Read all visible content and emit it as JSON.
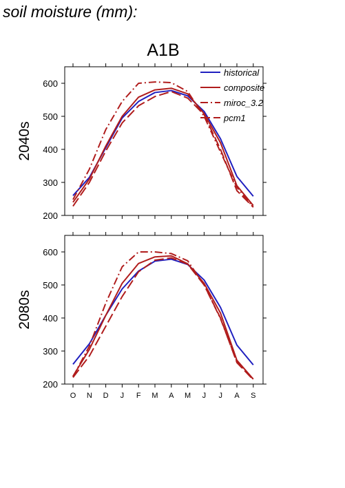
{
  "figure": {
    "title": "soil moisture (mm):",
    "scenario": "A1B"
  },
  "series_styles": [
    {
      "name": "historical",
      "color": "#1f1fbf",
      "dash": "solid"
    },
    {
      "name": "composite",
      "color": "#b01c1c",
      "dash": "solid"
    },
    {
      "name": "miroc_3.2",
      "color": "#b01c1c",
      "dash": "dash-dot"
    },
    {
      "name": "pcm1",
      "color": "#b01c1c",
      "dash": "dashed"
    }
  ],
  "chart_data": [
    {
      "type": "line",
      "title": "A1B",
      "ylabel": "2040s",
      "xlabel": "",
      "categories": [
        "O",
        "N",
        "D",
        "J",
        "F",
        "M",
        "A",
        "M",
        "J",
        "J",
        "A",
        "S"
      ],
      "ylim": [
        200,
        650
      ],
      "yticks": [
        200,
        300,
        400,
        500,
        600
      ],
      "grid": false,
      "legend": "top-right",
      "series": [
        {
          "name": "historical",
          "values": [
            260,
            315,
            405,
            495,
            545,
            572,
            578,
            562,
            515,
            432,
            318,
            258
          ]
        },
        {
          "name": "composite",
          "values": [
            240,
            310,
            410,
            500,
            558,
            580,
            585,
            568,
            508,
            420,
            290,
            230
          ]
        },
        {
          "name": "miroc_3.2",
          "values": [
            248,
            340,
            460,
            545,
            600,
            604,
            602,
            575,
            500,
            392,
            285,
            225
          ]
        },
        {
          "name": "pcm1",
          "values": [
            228,
            300,
            395,
            480,
            532,
            560,
            575,
            555,
            505,
            400,
            275,
            225
          ]
        }
      ]
    },
    {
      "type": "line",
      "title": "",
      "ylabel": "2080s",
      "xlabel": "",
      "categories": [
        "O",
        "N",
        "D",
        "J",
        "F",
        "M",
        "A",
        "M",
        "J",
        "J",
        "A",
        "S"
      ],
      "ylim": [
        200,
        650
      ],
      "yticks": [
        200,
        300,
        400,
        500,
        600
      ],
      "grid": false,
      "legend": "none",
      "series": [
        {
          "name": "historical",
          "values": [
            260,
            322,
            408,
            488,
            542,
            572,
            578,
            562,
            515,
            432,
            318,
            258
          ]
        },
        {
          "name": "composite",
          "values": [
            224,
            305,
            408,
            505,
            565,
            585,
            588,
            564,
            505,
            415,
            272,
            215
          ]
        },
        {
          "name": "miroc_3.2",
          "values": [
            222,
            315,
            445,
            555,
            600,
            600,
            595,
            573,
            500,
            398,
            268,
            215
          ]
        },
        {
          "name": "pcm1",
          "values": [
            220,
            285,
            375,
            465,
            540,
            575,
            582,
            563,
            500,
            400,
            265,
            213
          ]
        }
      ]
    }
  ]
}
